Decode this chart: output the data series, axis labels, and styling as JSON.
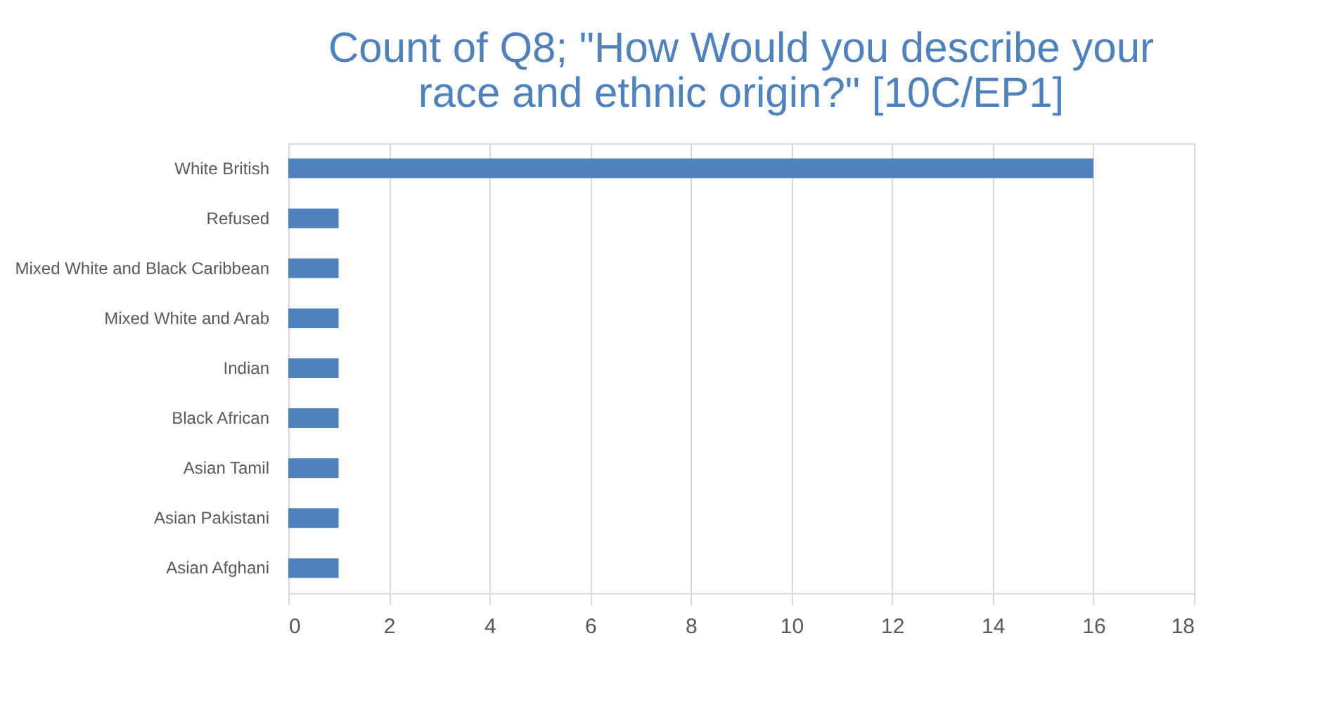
{
  "chart_data": {
    "type": "bar",
    "orientation": "horizontal",
    "title": "Count of Q8; \"How Would you describe your race and ethnic origin?\" [10C/EP1]",
    "categories": [
      "White British",
      "Refused",
      "Mixed White and Black Caribbean",
      "Mixed White and Arab",
      "Indian",
      "Black African",
      "Asian Tamil",
      "Asian Pakistani",
      "Asian Afghani"
    ],
    "values": [
      16,
      1,
      1,
      1,
      1,
      1,
      1,
      1,
      1
    ],
    "color": "#4f81bd",
    "xlim": [
      0,
      18
    ],
    "xticks": [
      0,
      2,
      4,
      6,
      8,
      10,
      12,
      14,
      16,
      18
    ],
    "grid": "x"
  }
}
